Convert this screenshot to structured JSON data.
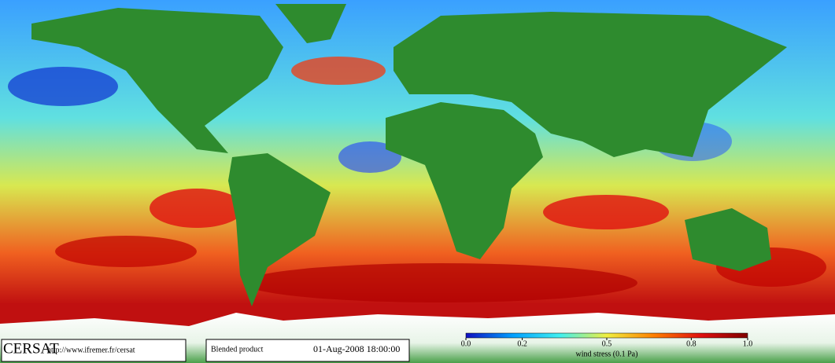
{
  "logo": "CERSAT",
  "url": "http://www.ifremer.fr/cersat",
  "product": "Blended product",
  "timestamp": "01-Aug-2008 18:00:00",
  "colorbar": {
    "label": "wind stress (0.1 Pa)",
    "lim": [
      0,
      1
    ],
    "ticks": [
      {
        "value": 0,
        "label": "0.0"
      },
      0.2,
      0.5,
      0.8,
      {
        "value": 1,
        "label": "1.0"
      }
    ],
    "colors": [
      "#1010c0",
      "#00a0ff",
      "#40f0f0",
      "#f0f040",
      "#ff8000",
      "#e01010",
      "#800000"
    ]
  }
}
